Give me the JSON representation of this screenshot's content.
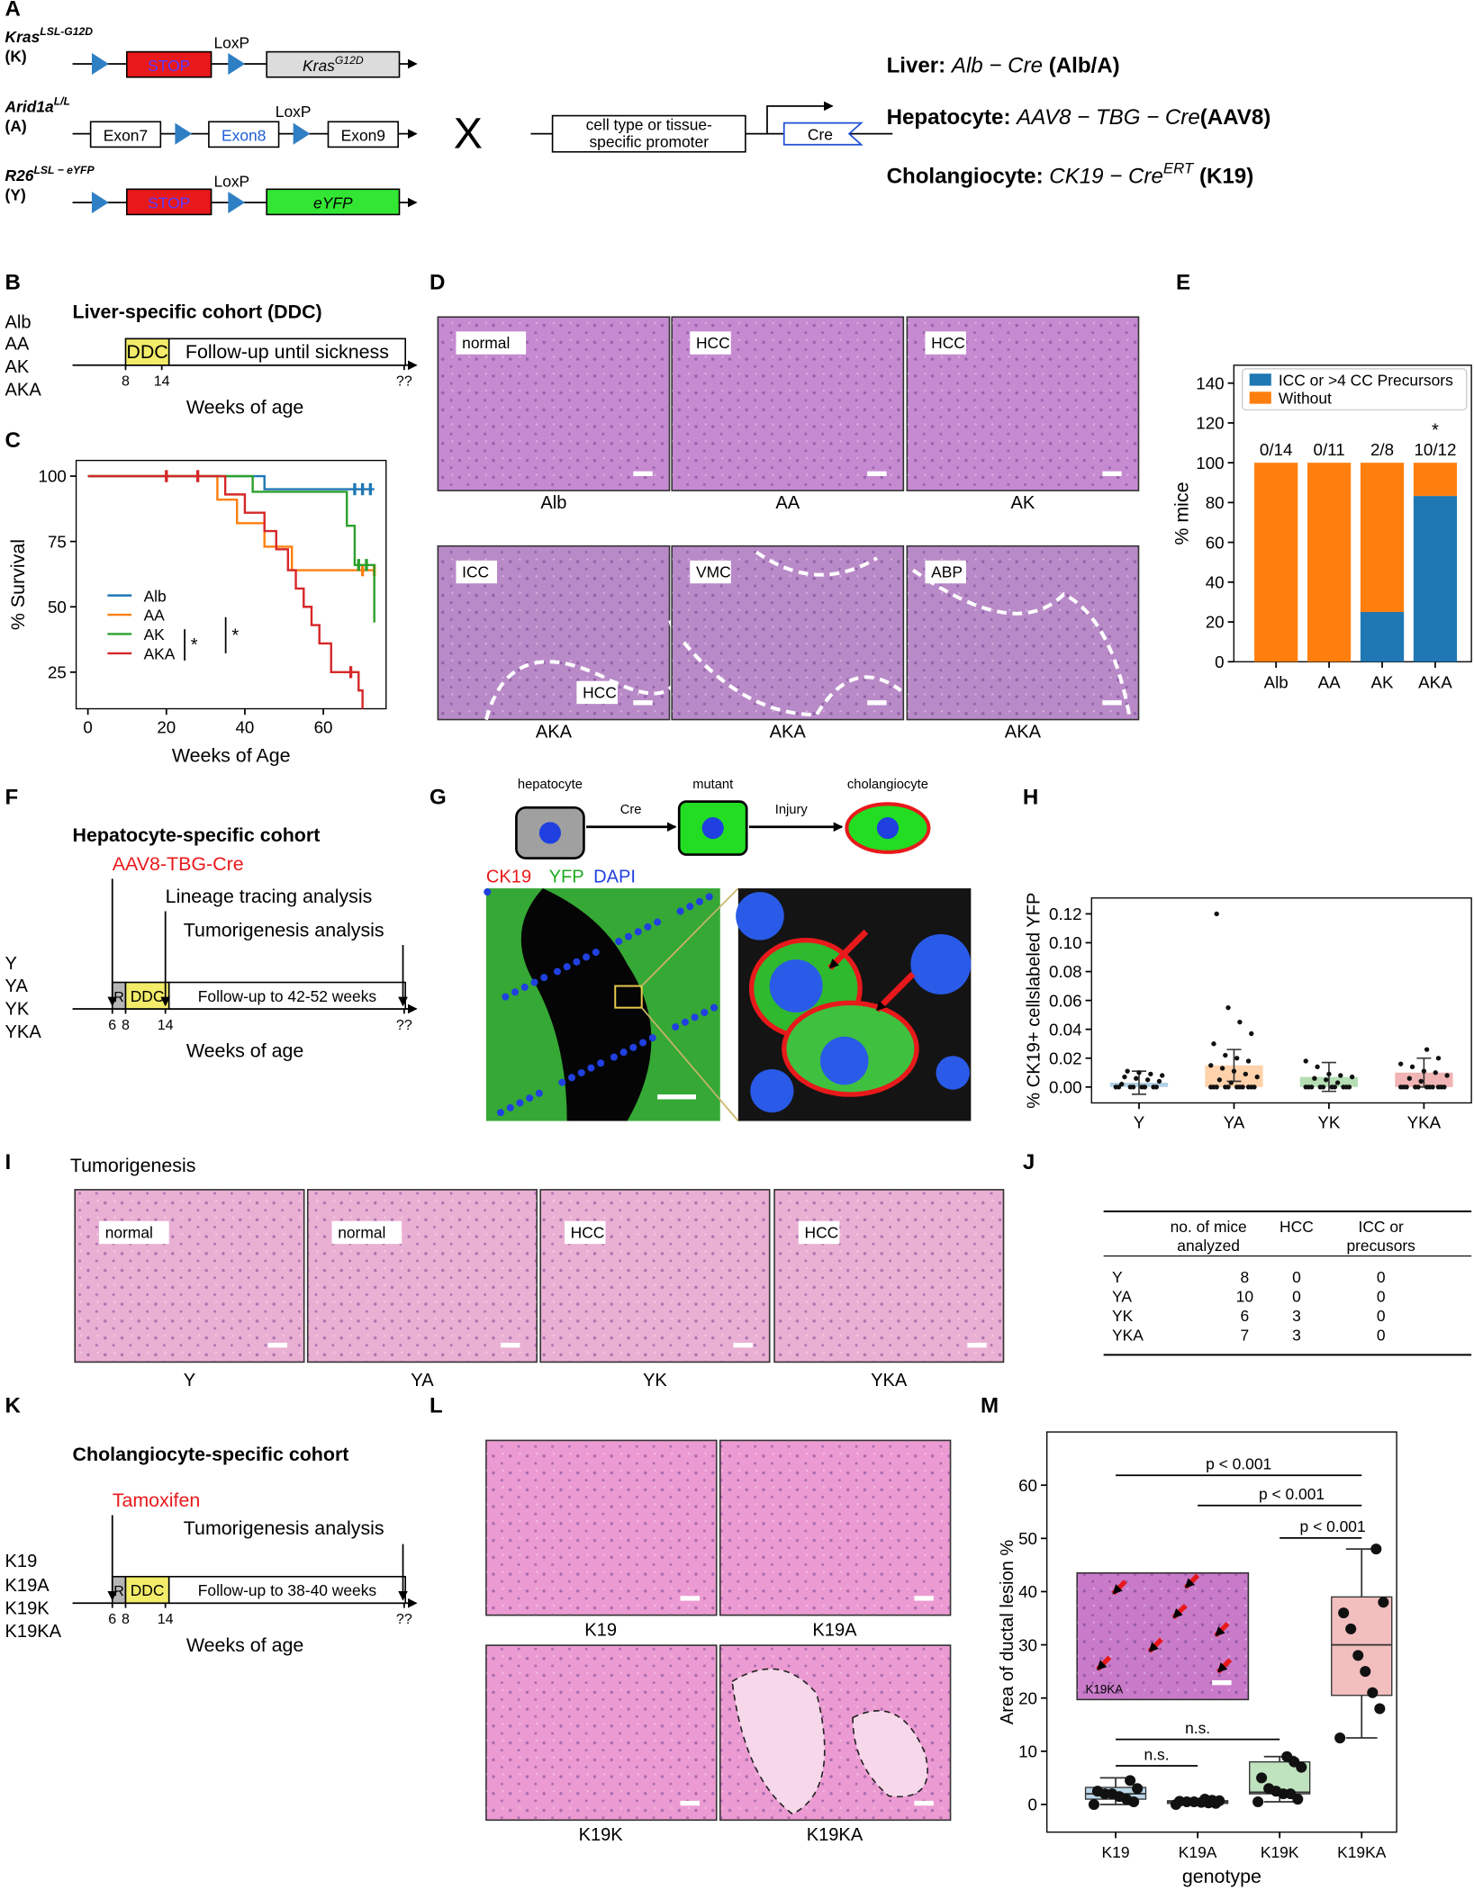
{
  "panel_labels": [
    "A",
    "B",
    "C",
    "D",
    "E",
    "F",
    "G",
    "H",
    "I",
    "J",
    "K",
    "L",
    "M"
  ],
  "A": {
    "alleles": [
      {
        "name": "Kras",
        "sup": "LSL-G12D",
        "abbr": "(K)"
      },
      {
        "name": "Arid1a",
        "sup": "L/L",
        "abbr": "(A)"
      },
      {
        "name": "R26",
        "sup": "LSL − eYFP",
        "abbr": "(Y)"
      }
    ],
    "stop": "STOP",
    "loxp": "LoxP",
    "kras": {
      "name": "Kras",
      "sup": "G12D"
    },
    "exons": [
      "Exon7",
      "Exon8",
      "Exon9"
    ],
    "eyfp": "eYFP",
    "cross": "X",
    "promoter": [
      "cell type or tissue-",
      "specific promoter"
    ],
    "cre": "Cre",
    "drivers": [
      {
        "tissue": "Liver:",
        "driver": "Alb − Cre",
        "abbr": "(Alb/A)"
      },
      {
        "tissue": "Hepatocyte:",
        "driver": "AAV8 − TBG − Cre",
        "abbr": "(AAV8)"
      },
      {
        "tissue": "Cholangiocyte:",
        "driver": "CK19 − Cre",
        "sup": "ERT",
        "abbr": "(K19)"
      }
    ]
  },
  "B": {
    "title": "Liver-specific cohort (DDC)",
    "groups": [
      "Alb",
      "AA",
      "AK",
      "AKA"
    ],
    "ddc": "DDC",
    "followup": "Follow-up until sickness",
    "ticks": [
      8,
      14,
      "??"
    ],
    "xlabel": "Weeks of age"
  },
  "D": {
    "images": [
      {
        "labels": [
          "normal"
        ],
        "caption": "Alb"
      },
      {
        "labels": [
          "HCC"
        ],
        "caption": "AA"
      },
      {
        "labels": [
          "HCC"
        ],
        "caption": "AK"
      },
      {
        "labels": [
          "ICC",
          "HCC"
        ],
        "caption": "AKA"
      },
      {
        "labels": [
          "VMC"
        ],
        "caption": "AKA"
      },
      {
        "labels": [
          "ABP"
        ],
        "caption": "AKA"
      }
    ]
  },
  "F": {
    "title": "Hepatocyte-specific cohort",
    "treatment": "AAV8-TBG-Cre",
    "analyses": [
      "Lineage tracing analysis",
      "Tumorigenesis analysis"
    ],
    "groups": [
      "Y",
      "YA",
      "YK",
      "YKA"
    ],
    "r": "R",
    "ddc": "DDC",
    "followup": "Follow-up to 42-52 weeks",
    "ticks": [
      6,
      8,
      14,
      "??"
    ],
    "xlabel": "Weeks of age"
  },
  "G": {
    "cells": [
      "hepatocyte",
      "mutant",
      "cholangiocyte"
    ],
    "steps": [
      "Cre",
      "Injury"
    ],
    "stains": [
      "CK19",
      "YFP",
      "DAPI"
    ]
  },
  "I": {
    "title": "Tumorigenesis",
    "images": [
      {
        "label": "normal",
        "caption": "Y"
      },
      {
        "label": "normal",
        "caption": "YA"
      },
      {
        "label": "HCC",
        "caption": "YK"
      },
      {
        "label": "HCC",
        "caption": "YKA"
      }
    ]
  },
  "J": {
    "table": {
      "header": [
        [
          "no. of mice",
          "analyzed"
        ],
        [
          "HCC"
        ],
        [
          "ICC or",
          "precusors"
        ]
      ],
      "rows": [
        [
          "Y",
          8,
          0,
          0
        ],
        [
          "YA",
          10,
          0,
          0
        ],
        [
          "YK",
          6,
          3,
          0
        ],
        [
          "YKA",
          7,
          3,
          0
        ]
      ]
    }
  },
  "K": {
    "title": "Cholangiocyte-specific cohort",
    "treatment": "Tamoxifen",
    "analyses": [
      "Tumorigenesis analysis"
    ],
    "groups": [
      "K19",
      "K19A",
      "K19K",
      "K19KA"
    ],
    "r": "R",
    "ddc": "DDC",
    "followup": "Follow-up to 38-40 weeks",
    "ticks": [
      6,
      8,
      14,
      "??"
    ],
    "xlabel": "Weeks of age"
  },
  "L": {
    "captions": [
      "K19",
      "K19A",
      "K19K",
      "K19KA"
    ]
  },
  "chart_data": [
    {
      "type": "line",
      "drawstyle": "steps-post",
      "xlabel": "Weeks of Age",
      "ylabel": "% Survival",
      "xlim": [
        -3,
        76
      ],
      "ylim": [
        11,
        106
      ],
      "xticks": [
        0,
        20,
        40,
        60
      ],
      "yticks": [
        25,
        50,
        75,
        100
      ],
      "legend": "center left",
      "annotations": [
        "*",
        "*"
      ],
      "series": [
        {
          "name": "Alb",
          "color": "#1f77b4",
          "x": [
            0,
            45,
            73
          ],
          "values": [
            100,
            95,
            95
          ],
          "censored": [
            68,
            70,
            72
          ]
        },
        {
          "name": "AA",
          "color": "#ff7f0e",
          "x": [
            0,
            33,
            38,
            45,
            52,
            73
          ],
          "values": [
            100,
            91,
            82,
            73,
            64,
            64
          ],
          "censored": [
            70,
            73
          ]
        },
        {
          "name": "AK",
          "color": "#2ca02c",
          "x": [
            0,
            42,
            66,
            68,
            73
          ],
          "values": [
            100,
            94,
            81,
            66,
            44
          ],
          "censored": [
            69,
            71
          ]
        },
        {
          "name": "AKA",
          "color": "#d62728",
          "x": [
            0,
            35,
            40,
            45,
            48,
            51,
            53,
            55,
            57,
            59,
            62,
            69,
            70
          ],
          "values": [
            100,
            93,
            86,
            79,
            72,
            64,
            57,
            50,
            43,
            36,
            25,
            18,
            11
          ],
          "censored": [
            20,
            28,
            67
          ]
        }
      ]
    },
    {
      "type": "bar",
      "stacked": true,
      "ylabel": "% mice",
      "categories": [
        "Alb",
        "AA",
        "AK",
        "AKA"
      ],
      "ylim": [
        0,
        149
      ],
      "yticks": [
        0,
        20,
        40,
        60,
        80,
        100,
        120,
        140
      ],
      "legend": "upper right",
      "annotations": [
        "*"
      ],
      "series": [
        {
          "name": "ICC or >4 CC Precursors",
          "color": "#1f77b4",
          "values": [
            0,
            0,
            25,
            83.3
          ],
          "value_labels": [
            "0/14",
            "0/11",
            "2/8",
            "10/12"
          ]
        },
        {
          "name": "Without",
          "color": "#ff7f0e",
          "values": [
            100,
            100,
            75,
            16.7
          ]
        }
      ]
    },
    {
      "type": "bar",
      "ylabel": "% CK19+ cellslabeled YFP",
      "categories": [
        "Y",
        "YA",
        "YK",
        "YKA"
      ],
      "colors": [
        "#1f77b4",
        "#ff7f0e",
        "#2ca02c",
        "#d62728"
      ],
      "ylim": [
        -0.011,
        0.131
      ],
      "yticks": [
        {
          "value": 0,
          "label": "0.00"
        },
        {
          "value": 0.02,
          "label": "0.02"
        },
        {
          "value": 0.04,
          "label": "0.04"
        },
        {
          "value": 0.06,
          "label": "0.06"
        },
        {
          "value": 0.08,
          "label": "0.08"
        },
        {
          "value": 0.1,
          "label": "0.10"
        },
        {
          "value": 0.12,
          "label": "0.12"
        }
      ],
      "values": [
        0.003,
        0.015,
        0.007,
        0.01
      ],
      "errors": [
        0.008,
        0.011,
        0.01,
        0.01
      ],
      "points": [
        [
          0,
          0,
          0,
          0,
          0,
          0,
          0,
          0,
          0.002,
          0.004,
          0.005,
          0.006,
          0.007,
          0.008,
          0.009,
          0.01,
          0.011
        ],
        [
          0,
          0,
          0,
          0,
          0,
          0,
          0,
          0,
          0,
          0,
          0,
          0.003,
          0.005,
          0.007,
          0.009,
          0.011,
          0.013,
          0.015,
          0.018,
          0.02,
          0.022,
          0.03,
          0.037,
          0.045,
          0.055,
          0.12
        ],
        [
          0,
          0,
          0,
          0,
          0,
          0,
          0,
          0,
          0,
          0,
          0.003,
          0.005,
          0.006,
          0.007,
          0.008,
          0.009,
          0.014,
          0.018
        ],
        [
          0,
          0,
          0,
          0,
          0,
          0,
          0,
          0,
          0,
          0,
          0,
          0.004,
          0.006,
          0.008,
          0.01,
          0.011,
          0.014,
          0.016,
          0.02,
          0.026
        ]
      ]
    },
    {
      "type": "box",
      "xlabel": "genotype",
      "ylabel": "Area of ductal lesion %",
      "categories": [
        "K19",
        "K19A",
        "K19K",
        "K19KA"
      ],
      "colors": [
        "#1f77b4",
        "#ff7f0e",
        "#2ca02c",
        "#d62728"
      ],
      "ylim": [
        -5.2,
        70
      ],
      "yticks": [
        0,
        10,
        20,
        30,
        40,
        50,
        60
      ],
      "boxes": [
        {
          "min": 0,
          "q1": 1,
          "median": 2,
          "q3": 3.2,
          "max": 5
        },
        {
          "min": 0,
          "q1": 0.2,
          "median": 0.5,
          "q3": 0.7,
          "max": 1
        },
        {
          "min": 0.5,
          "q1": 2,
          "median": 2.3,
          "q3": 8,
          "max": 9
        },
        {
          "min": 12.5,
          "q1": 20.5,
          "median": 30,
          "q3": 39,
          "max": 48
        }
      ],
      "points": [
        [
          0,
          0.5,
          1,
          1.5,
          2,
          2,
          2.5,
          3,
          4.5
        ],
        [
          0,
          0.2,
          0.3,
          0.4,
          0.5,
          0.5,
          0.6,
          0.7,
          0.8,
          1
        ],
        [
          0.5,
          1,
          2,
          2,
          2.5,
          3,
          5,
          7,
          8,
          9
        ],
        [
          12.5,
          18,
          21,
          25,
          28,
          33,
          36,
          38,
          48
        ]
      ],
      "annotations": [
        "p < 0.001",
        "p < 0.001",
        "p < 0.001",
        "n.s.",
        "n.s."
      ],
      "inset_label": "K19KA"
    }
  ]
}
